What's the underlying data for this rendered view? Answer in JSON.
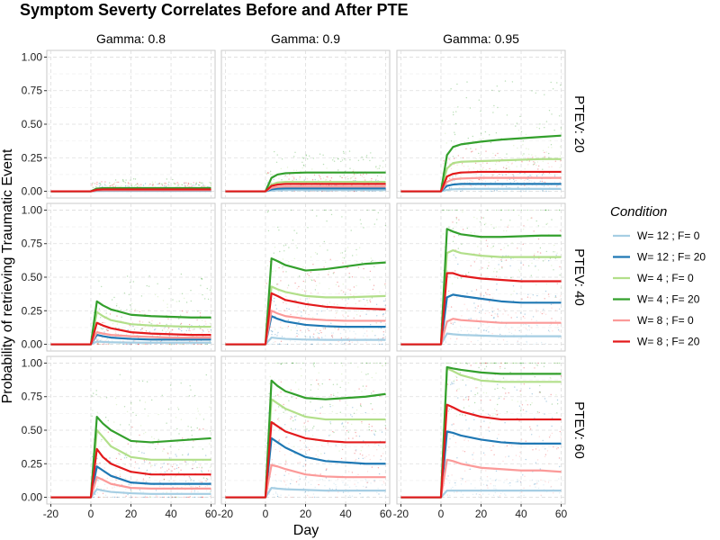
{
  "chart_data": {
    "type": "line",
    "title": "Symptom Severty Correlates Before and After PTE",
    "xlabel": "Day",
    "ylabel": "Probability of retrieving Traumatic Event",
    "xlim": [
      -22,
      62
    ],
    "ylim": [
      -0.05,
      1.05
    ],
    "x_ticks": [
      -20,
      0,
      20,
      40,
      60
    ],
    "x_tick_labels": [
      "-20",
      "0",
      "20",
      "40",
      "60"
    ],
    "y_ticks": [
      0,
      0.25,
      0.5,
      0.75,
      1
    ],
    "y_tick_labels": [
      "0.00",
      "0.25",
      "0.50",
      "0.75",
      "1.00"
    ],
    "grid": true,
    "legend_position": "right",
    "legend": {
      "title": "Condition",
      "entries": [
        {
          "label": "W= 12 ; F= 0",
          "color": "#a6cee3"
        },
        {
          "label": "W= 12 ; F= 20",
          "color": "#1f78b4"
        },
        {
          "label": "W= 4 ; F= 0",
          "color": "#b2df8a"
        },
        {
          "label": "W= 4 ; F= 20",
          "color": "#33a02c"
        },
        {
          "label": "W= 8 ; F= 0",
          "color": "#fb9a99"
        },
        {
          "label": "W= 8 ; F= 20",
          "color": "#e31a1c"
        }
      ]
    },
    "facet_columns": [
      "Gamma: 0.8",
      "Gamma: 0.9",
      "Gamma: 0.95"
    ],
    "facet_rows": [
      "PTEV: 20",
      "PTEV: 40",
      "PTEV: 60"
    ],
    "x": [
      -20,
      -10,
      0,
      3,
      6,
      10,
      20,
      30,
      40,
      50,
      60
    ],
    "panels": [
      {
        "column": "Gamma: 0.8",
        "row": "PTEV: 20",
        "series": [
          {
            "name": "W= 12 ; F= 0",
            "values": [
              0,
              0,
              0,
              0.002,
              0.003,
              0.003,
              0.003,
              0.003,
              0.003,
              0.003,
              0.003
            ]
          },
          {
            "name": "W= 12 ; F= 20",
            "values": [
              0,
              0,
              0,
              0.005,
              0.006,
              0.006,
              0.006,
              0.006,
              0.006,
              0.006,
              0.006
            ]
          },
          {
            "name": "W= 4 ; F= 0",
            "values": [
              0,
              0,
              0,
              0.01,
              0.012,
              0.012,
              0.012,
              0.012,
              0.012,
              0.012,
              0.012
            ]
          },
          {
            "name": "W= 4 ; F= 20",
            "values": [
              0,
              0,
              0,
              0.02,
              0.024,
              0.024,
              0.024,
              0.024,
              0.024,
              0.024,
              0.024
            ]
          },
          {
            "name": "W= 8 ; F= 0",
            "values": [
              0,
              0,
              0,
              0.007,
              0.008,
              0.008,
              0.008,
              0.008,
              0.008,
              0.008,
              0.008
            ]
          },
          {
            "name": "W= 8 ; F= 20",
            "values": [
              0,
              0,
              0,
              0.012,
              0.014,
              0.014,
              0.014,
              0.014,
              0.014,
              0.014,
              0.014
            ]
          }
        ]
      },
      {
        "column": "Gamma: 0.9",
        "row": "PTEV: 20",
        "series": [
          {
            "name": "W= 12 ; F= 0",
            "values": [
              0,
              0,
              0,
              0.005,
              0.008,
              0.009,
              0.009,
              0.009,
              0.009,
              0.009,
              0.009
            ]
          },
          {
            "name": "W= 12 ; F= 20",
            "values": [
              0,
              0,
              0,
              0.015,
              0.02,
              0.022,
              0.022,
              0.022,
              0.022,
              0.022,
              0.022
            ]
          },
          {
            "name": "W= 4 ; F= 0",
            "values": [
              0,
              0,
              0,
              0.05,
              0.065,
              0.07,
              0.07,
              0.07,
              0.07,
              0.07,
              0.07
            ]
          },
          {
            "name": "W= 4 ; F= 20",
            "values": [
              0,
              0,
              0,
              0.1,
              0.125,
              0.135,
              0.14,
              0.14,
              0.14,
              0.14,
              0.14
            ]
          },
          {
            "name": "W= 8 ; F= 0",
            "values": [
              0,
              0,
              0,
              0.025,
              0.033,
              0.035,
              0.035,
              0.035,
              0.035,
              0.035,
              0.035
            ]
          },
          {
            "name": "W= 8 ; F= 20",
            "values": [
              0,
              0,
              0,
              0.04,
              0.05,
              0.055,
              0.055,
              0.055,
              0.055,
              0.055,
              0.055
            ]
          }
        ]
      },
      {
        "column": "Gamma: 0.95",
        "row": "PTEV: 20",
        "series": [
          {
            "name": "W= 12 ; F= 0",
            "values": [
              0,
              0,
              0,
              0.01,
              0.015,
              0.017,
              0.018,
              0.018,
              0.018,
              0.018,
              0.018
            ]
          },
          {
            "name": "W= 12 ; F= 20",
            "values": [
              0,
              0,
              0,
              0.04,
              0.05,
              0.055,
              0.055,
              0.055,
              0.055,
              0.055,
              0.055
            ]
          },
          {
            "name": "W= 4 ; F= 0",
            "values": [
              0,
              0,
              0,
              0.17,
              0.21,
              0.22,
              0.225,
              0.23,
              0.235,
              0.24,
              0.24
            ]
          },
          {
            "name": "W= 4 ; F= 20",
            "values": [
              0,
              0,
              0,
              0.27,
              0.33,
              0.35,
              0.37,
              0.385,
              0.395,
              0.405,
              0.415
            ]
          },
          {
            "name": "W= 8 ; F= 0",
            "values": [
              0,
              0,
              0,
              0.07,
              0.09,
              0.095,
              0.1,
              0.1,
              0.1,
              0.1,
              0.1
            ]
          },
          {
            "name": "W= 8 ; F= 20",
            "values": [
              0,
              0,
              0,
              0.11,
              0.13,
              0.14,
              0.145,
              0.145,
              0.145,
              0.145,
              0.145
            ]
          }
        ]
      },
      {
        "column": "Gamma: 0.8",
        "row": "PTEV: 40",
        "series": [
          {
            "name": "W= 12 ; F= 0",
            "values": [
              0,
              0,
              0,
              0.02,
              0.018,
              0.015,
              0.013,
              0.012,
              0.012,
              0.012,
              0.012
            ]
          },
          {
            "name": "W= 12 ; F= 20",
            "values": [
              0,
              0,
              0,
              0.07,
              0.06,
              0.05,
              0.04,
              0.035,
              0.035,
              0.035,
              0.035
            ]
          },
          {
            "name": "W= 4 ; F= 0",
            "values": [
              0,
              0,
              0,
              0.24,
              0.21,
              0.18,
              0.15,
              0.14,
              0.135,
              0.13,
              0.13
            ]
          },
          {
            "name": "W= 4 ; F= 20",
            "values": [
              0,
              0,
              0,
              0.32,
              0.29,
              0.26,
              0.22,
              0.21,
              0.205,
              0.2,
              0.2
            ]
          },
          {
            "name": "W= 8 ; F= 0",
            "values": [
              0,
              0,
              0,
              0.09,
              0.08,
              0.07,
              0.06,
              0.055,
              0.05,
              0.05,
              0.05
            ]
          },
          {
            "name": "W= 8 ; F= 20",
            "values": [
              0,
              0,
              0,
              0.16,
              0.14,
              0.12,
              0.09,
              0.08,
              0.075,
              0.07,
              0.07
            ]
          }
        ]
      },
      {
        "column": "Gamma: 0.9",
        "row": "PTEV: 40",
        "series": [
          {
            "name": "W= 12 ; F= 0",
            "values": [
              0,
              0,
              0,
              0.05,
              0.045,
              0.04,
              0.035,
              0.033,
              0.033,
              0.033,
              0.033
            ]
          },
          {
            "name": "W= 12 ; F= 20",
            "values": [
              0,
              0,
              0,
              0.21,
              0.19,
              0.17,
              0.145,
              0.135,
              0.13,
              0.13,
              0.13
            ]
          },
          {
            "name": "W= 4 ; F= 0",
            "values": [
              0,
              0,
              0,
              0.43,
              0.41,
              0.39,
              0.36,
              0.35,
              0.35,
              0.355,
              0.36
            ]
          },
          {
            "name": "W= 4 ; F= 20",
            "values": [
              0,
              0,
              0,
              0.64,
              0.62,
              0.59,
              0.55,
              0.56,
              0.58,
              0.6,
              0.61
            ]
          },
          {
            "name": "W= 8 ; F= 0",
            "values": [
              0,
              0,
              0,
              0.25,
              0.23,
              0.21,
              0.19,
              0.18,
              0.175,
              0.175,
              0.175
            ]
          },
          {
            "name": "W= 8 ; F= 20",
            "values": [
              0,
              0,
              0,
              0.38,
              0.36,
              0.33,
              0.3,
              0.28,
              0.27,
              0.265,
              0.26
            ]
          }
        ]
      },
      {
        "column": "Gamma: 0.95",
        "row": "PTEV: 40",
        "series": [
          {
            "name": "W= 12 ; F= 0",
            "values": [
              0,
              0,
              0,
              0.08,
              0.075,
              0.07,
              0.065,
              0.06,
              0.06,
              0.06,
              0.06
            ]
          },
          {
            "name": "W= 12 ; F= 20",
            "values": [
              0,
              0,
              0,
              0.35,
              0.37,
              0.36,
              0.34,
              0.32,
              0.31,
              0.31,
              0.31
            ]
          },
          {
            "name": "W= 4 ; F= 0",
            "values": [
              0,
              0,
              0,
              0.68,
              0.7,
              0.68,
              0.66,
              0.65,
              0.65,
              0.65,
              0.65
            ]
          },
          {
            "name": "W= 4 ; F= 20",
            "values": [
              0,
              0,
              0,
              0.86,
              0.84,
              0.82,
              0.8,
              0.8,
              0.805,
              0.81,
              0.81
            ]
          },
          {
            "name": "W= 8 ; F= 0",
            "values": [
              0,
              0,
              0,
              0.17,
              0.19,
              0.18,
              0.17,
              0.16,
              0.16,
              0.16,
              0.16
            ]
          },
          {
            "name": "W= 8 ; F= 20",
            "values": [
              0,
              0,
              0,
              0.53,
              0.53,
              0.51,
              0.49,
              0.48,
              0.47,
              0.47,
              0.47
            ]
          }
        ]
      },
      {
        "column": "Gamma: 0.8",
        "row": "PTEV: 60",
        "series": [
          {
            "name": "W= 12 ; F= 0",
            "values": [
              0,
              0,
              0,
              0.06,
              0.05,
              0.04,
              0.03,
              0.025,
              0.025,
              0.025,
              0.025
            ]
          },
          {
            "name": "W= 12 ; F= 20",
            "values": [
              0,
              0,
              0,
              0.23,
              0.2,
              0.16,
              0.11,
              0.1,
              0.1,
              0.1,
              0.1
            ]
          },
          {
            "name": "W= 4 ; F= 0",
            "values": [
              0,
              0,
              0,
              0.5,
              0.45,
              0.38,
              0.3,
              0.28,
              0.28,
              0.28,
              0.28
            ]
          },
          {
            "name": "W= 4 ; F= 20",
            "values": [
              0,
              0,
              0,
              0.6,
              0.55,
              0.5,
              0.42,
              0.41,
              0.42,
              0.43,
              0.44
            ]
          },
          {
            "name": "W= 8 ; F= 0",
            "values": [
              0,
              0,
              0,
              0.15,
              0.13,
              0.1,
              0.07,
              0.065,
              0.065,
              0.065,
              0.065
            ]
          },
          {
            "name": "W= 8 ; F= 20",
            "values": [
              0,
              0,
              0,
              0.36,
              0.3,
              0.25,
              0.19,
              0.17,
              0.17,
              0.17,
              0.17
            ]
          }
        ]
      },
      {
        "column": "Gamma: 0.9",
        "row": "PTEV: 60",
        "series": [
          {
            "name": "W= 12 ; F= 0",
            "values": [
              0,
              0,
              0,
              0.07,
              0.065,
              0.06,
              0.055,
              0.05,
              0.05,
              0.05,
              0.05
            ]
          },
          {
            "name": "W= 12 ; F= 20",
            "values": [
              0,
              0,
              0,
              0.44,
              0.41,
              0.37,
              0.3,
              0.27,
              0.26,
              0.25,
              0.25
            ]
          },
          {
            "name": "W= 4 ; F= 0",
            "values": [
              0,
              0,
              0,
              0.73,
              0.7,
              0.66,
              0.6,
              0.58,
              0.58,
              0.58,
              0.58
            ]
          },
          {
            "name": "W= 4 ; F= 20",
            "values": [
              0,
              0,
              0,
              0.87,
              0.83,
              0.79,
              0.74,
              0.73,
              0.74,
              0.75,
              0.77
            ]
          },
          {
            "name": "W= 8 ; F= 0",
            "values": [
              0,
              0,
              0,
              0.24,
              0.23,
              0.21,
              0.17,
              0.155,
              0.15,
              0.15,
              0.15
            ]
          },
          {
            "name": "W= 8 ; F= 20",
            "values": [
              0,
              0,
              0,
              0.56,
              0.53,
              0.49,
              0.44,
              0.42,
              0.41,
              0.41,
              0.41
            ]
          }
        ]
      },
      {
        "column": "Gamma: 0.95",
        "row": "PTEV: 60",
        "series": [
          {
            "name": "W= 12 ; F= 0",
            "values": [
              0,
              0,
              0,
              0.05,
              0.05,
              0.05,
              0.05,
              0.05,
              0.05,
              0.05,
              0.05
            ]
          },
          {
            "name": "W= 12 ; F= 20",
            "values": [
              0,
              0,
              0,
              0.49,
              0.48,
              0.46,
              0.43,
              0.41,
              0.4,
              0.4,
              0.4
            ]
          },
          {
            "name": "W= 4 ; F= 0",
            "values": [
              0,
              0,
              0,
              0.96,
              0.94,
              0.91,
              0.87,
              0.86,
              0.86,
              0.86,
              0.86
            ]
          },
          {
            "name": "W= 4 ; F= 20",
            "values": [
              0,
              0,
              0,
              0.97,
              0.96,
              0.95,
              0.93,
              0.92,
              0.92,
              0.92,
              0.92
            ]
          },
          {
            "name": "W= 8 ; F= 0",
            "values": [
              0,
              0,
              0,
              0.28,
              0.27,
              0.25,
              0.22,
              0.21,
              0.2,
              0.2,
              0.19
            ]
          },
          {
            "name": "W= 8 ; F= 20",
            "values": [
              0,
              0,
              0,
              0.69,
              0.67,
              0.64,
              0.6,
              0.58,
              0.58,
              0.58,
              0.58
            ]
          }
        ]
      }
    ]
  }
}
